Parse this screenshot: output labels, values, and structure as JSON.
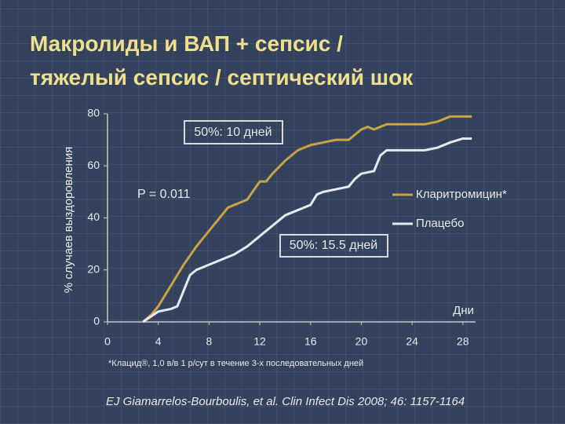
{
  "chart_data": {
    "type": "line",
    "title": [
      "Макролиды и ВАП + сепсис /",
      "тяжелый сепсис / септический шок"
    ],
    "y_label": "% случаев выздоровления",
    "x_label": "Дни",
    "annotations": [
      "50%: 10 дней",
      "P = 0.011",
      "50%: 15.5 дней"
    ],
    "footnote": "*Клацид®, 1,0 в/в 1 р/сут в течение 3-х последовательных дней",
    "citation": "EJ Giamarrelos-Bourboulis, et al. Clin Infect Dis 2008; 46: 1157-1164",
    "xlim": [
      0,
      29
    ],
    "xticks": [
      0,
      4,
      8,
      12,
      16,
      20,
      24,
      28
    ],
    "ylim": [
      0,
      80
    ],
    "yticks": [
      0,
      20,
      40,
      60,
      80
    ],
    "legend": "right",
    "series": [
      {
        "name": "Кларитромицин*",
        "color": "#c9a343",
        "x": [
          2.8,
          3.5,
          4,
          5,
          6,
          7,
          8,
          9,
          9.5,
          10,
          10.5,
          11,
          12,
          12.5,
          13,
          14,
          15,
          16,
          17,
          18,
          19,
          20,
          20.5,
          21,
          22,
          23,
          24,
          25,
          26,
          27,
          28,
          28.7
        ],
        "values": [
          0,
          3,
          6,
          14,
          22,
          29,
          35,
          41,
          44,
          45,
          46,
          47,
          54,
          54,
          57,
          62,
          66,
          68,
          69,
          70,
          70,
          74,
          75,
          74,
          76,
          76,
          76,
          76,
          77,
          79,
          79,
          79
        ]
      },
      {
        "name": "Плацебо",
        "color": "#e4e8f0",
        "x": [
          2.8,
          4,
          5,
          5.5,
          6,
          6.5,
          7,
          8,
          9,
          10,
          11,
          12,
          13,
          14,
          15,
          16,
          16.5,
          17,
          18,
          19,
          19.5,
          20,
          21,
          21.5,
          22,
          23,
          24,
          25,
          26,
          27,
          28,
          28.7
        ],
        "values": [
          0,
          4,
          5,
          6,
          12,
          18,
          20,
          22,
          24,
          26,
          29,
          33,
          37,
          41,
          43,
          45,
          49,
          50,
          51,
          52,
          55,
          57,
          58,
          64,
          66,
          66,
          66,
          66,
          67,
          69,
          70.5,
          70.5
        ]
      }
    ]
  }
}
